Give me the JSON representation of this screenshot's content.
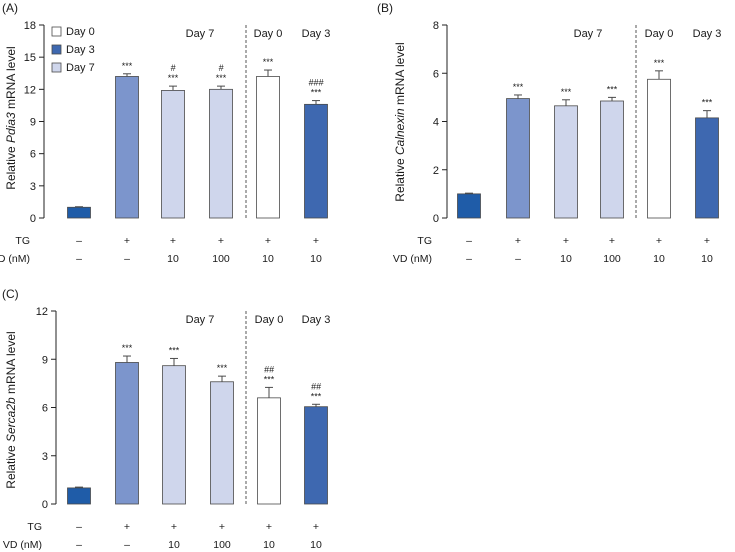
{
  "colors": {
    "control": "#1f5ca8",
    "day3": "#3e68b0",
    "tg_only": "#7c95cc",
    "day7": "#cfd6ec",
    "day0": "#ffffff",
    "edge": "#4a4a4a"
  },
  "legend": [
    {
      "label": "Day 0",
      "color": "#ffffff"
    },
    {
      "label": "Day 3",
      "color": "#3e68b0"
    },
    {
      "label": "Day 7",
      "color": "#cfd6ec"
    }
  ],
  "condition_rows": {
    "tg_label": "TG",
    "vd_label": "VD (nM)",
    "tg": [
      "–",
      "+",
      "+",
      "+",
      "+",
      "+"
    ],
    "vd": [
      "–",
      "–",
      "10",
      "100",
      "10",
      "10"
    ]
  },
  "chart_data": [
    {
      "type": "bar",
      "panel": "(A)",
      "ylabel_prefix": "Relative ",
      "ylabel_gene": "Pdia3",
      "ylabel_suffix": " mRNA level",
      "ylim": [
        0,
        18
      ],
      "yticks": [
        "0",
        "3",
        "6",
        "9",
        "12",
        "15",
        "18"
      ],
      "group_labels": [
        "Day 7",
        "Day 0",
        "Day 3"
      ],
      "show_legend": true,
      "values": [
        1.0,
        13.2,
        11.9,
        12.0,
        13.2,
        10.6
      ],
      "errors": [
        0.05,
        0.25,
        0.4,
        0.3,
        0.6,
        0.35
      ],
      "bar_colors": [
        "#1f5ca8",
        "#7c95cc",
        "#cfd6ec",
        "#cfd6ec",
        "#ffffff",
        "#3e68b0"
      ],
      "stars": [
        "",
        "***",
        "***",
        "***",
        "***",
        "***"
      ],
      "hashes": [
        "",
        "",
        "#",
        "#",
        "",
        "###"
      ]
    },
    {
      "type": "bar",
      "panel": "(B)",
      "ylabel_prefix": "Relative ",
      "ylabel_gene": "Calnexin",
      "ylabel_suffix": " mRNA level",
      "ylim": [
        0,
        8
      ],
      "yticks": [
        "0",
        "2",
        "4",
        "6",
        "8"
      ],
      "group_labels": [
        "Day 7",
        "Day 0",
        "Day 3"
      ],
      "show_legend": false,
      "values": [
        1.0,
        4.95,
        4.65,
        4.85,
        5.75,
        4.15
      ],
      "errors": [
        0.03,
        0.15,
        0.25,
        0.15,
        0.35,
        0.3
      ],
      "bar_colors": [
        "#1f5ca8",
        "#7c95cc",
        "#cfd6ec",
        "#cfd6ec",
        "#ffffff",
        "#3e68b0"
      ],
      "stars": [
        "",
        "***",
        "***",
        "***",
        "***",
        "***"
      ],
      "hashes": [
        "",
        "",
        "",
        "",
        "",
        ""
      ]
    },
    {
      "type": "bar",
      "panel": "(C)",
      "ylabel_prefix": "Relative ",
      "ylabel_gene": "Serca2b",
      "ylabel_suffix": " mRNA level",
      "ylim": [
        0,
        12
      ],
      "yticks": [
        "0",
        "3",
        "6",
        "9",
        "12"
      ],
      "group_labels": [
        "Day 7",
        "Day 0",
        "Day 3"
      ],
      "show_legend": false,
      "values": [
        1.0,
        8.8,
        8.6,
        7.6,
        6.6,
        6.05
      ],
      "errors": [
        0.05,
        0.4,
        0.45,
        0.35,
        0.65,
        0.15
      ],
      "bar_colors": [
        "#1f5ca8",
        "#7c95cc",
        "#cfd6ec",
        "#cfd6ec",
        "#ffffff",
        "#3e68b0"
      ],
      "stars": [
        "",
        "***",
        "***",
        "***",
        "***",
        "***"
      ],
      "hashes": [
        "",
        "",
        "",
        "",
        "##",
        "##"
      ]
    }
  ]
}
